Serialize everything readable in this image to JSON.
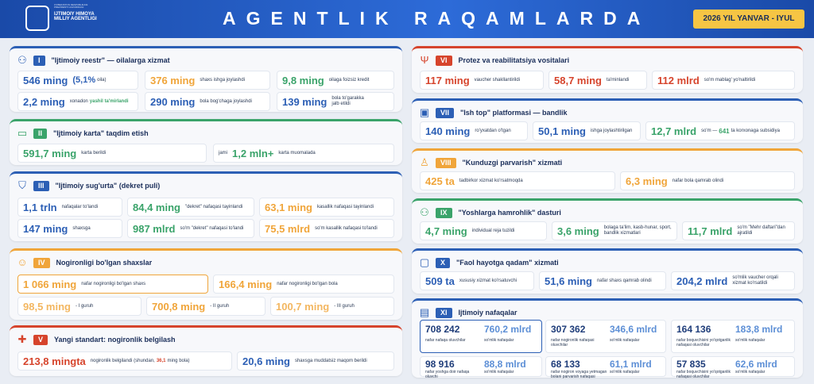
{
  "header": {
    "logo_small": "O'ZBEKISTON RESPUBLIKASI PREZIDENTI HUZURIDAGI",
    "logo_name": "IJTIMOIY HIMOYA MILLIY AGENTLIGI",
    "title": "AGENTLIK RAQAMLARDA",
    "period": "2026 YIL YANVAR - IYUL"
  },
  "sections": {
    "s1": {
      "num": "I",
      "title": "\"Ijtimoiy reestr\" — oilalarga xizmat",
      "stats": [
        {
          "value": "546 ming",
          "extra": "(5,1%",
          "label": "oila)"
        },
        {
          "value": "376 ming",
          "label": "shaxs ishga joylashdi"
        },
        {
          "value": "9,8 ming",
          "label": "oilaga foizsiz kredit"
        },
        {
          "value": "2,2 ming",
          "label": "xonadon",
          "label2": "yashil ta'mirlandi"
        },
        {
          "value": "290 ming",
          "label": "bola bog'chaga joylashdi"
        },
        {
          "value": "139 ming",
          "label": "bola to'garakka jalb etildi"
        }
      ]
    },
    "s2": {
      "num": "II",
      "title": "\"Ijtimoiy karta\" taqdim etish",
      "stats": [
        {
          "value": "591,7 ming",
          "label": "karta berildi"
        },
        {
          "pre": "jami",
          "value": "1,2 mln+",
          "label": "karta muomalada"
        }
      ]
    },
    "s3": {
      "num": "III",
      "title": "\"Ijtimoiy sug'urta\" (dekret puli)",
      "stats": [
        {
          "value": "1,1 trln",
          "label": "nafaqalar to'landi"
        },
        {
          "value": "84,4 ming",
          "label": "\"dekret\" nafaqasi tayinlandi"
        },
        {
          "value": "63,1 ming",
          "label": "kasallik nafaqasi tayinlandi"
        },
        {
          "value": "147 ming",
          "label": "shaxsga"
        },
        {
          "value": "987 mlrd",
          "label": "so'm \"dekret\" nafaqasi to'landi"
        },
        {
          "value": "75,5 mlrd",
          "label": "so'm kasallik nafaqasi to'landi"
        }
      ]
    },
    "s4": {
      "num": "IV",
      "title": "Nogironligi bo'lgan shaxslar",
      "stats": [
        {
          "value": "1 066 ming",
          "label": "nafar nogironligi bo'lgan shaxs"
        },
        {
          "value": "166,4 ming",
          "label": "nafar nogironligi bo'lgan bola"
        },
        {
          "value": "98,5 ming",
          "label": "- I guruh"
        },
        {
          "value": "700,8 ming",
          "label": "- II guruh"
        },
        {
          "value": "100,7 ming",
          "label": "- III guruh"
        }
      ]
    },
    "s5": {
      "num": "V",
      "title": "Yangi standart: nogironlik belgilash",
      "stats": [
        {
          "value": "213,8 mingta",
          "label": "nogironlik belgilandi (shundan,",
          "bold": "36,1",
          "label2": "ming bola)"
        },
        {
          "value": "20,6 ming",
          "label": "shaxsga muddatsiz maqom berildi"
        }
      ]
    },
    "s6": {
      "num": "VI",
      "title": "Protez va reabilitatsiya vositalari",
      "stats": [
        {
          "value": "117 ming",
          "label": "vaucher shakllantirildi"
        },
        {
          "value": "58,7 ming",
          "label": "ta'minlandi"
        },
        {
          "value": "112 mlrd",
          "label": "so'm mablag' yo'naltirildi"
        }
      ]
    },
    "s7": {
      "num": "VII",
      "title": "\"Ish top\" platformasi — bandlik",
      "stats": [
        {
          "value": "140 ming",
          "label": "ro'yxatdan o'tgan"
        },
        {
          "value": "50,1 ming",
          "label": "ishga joylashtirilgan"
        },
        {
          "value": "12,7 mlrd",
          "label": "so'm —",
          "bold": "641",
          "label2": "ta korxonaga subsidiya"
        }
      ]
    },
    "s8": {
      "num": "VIII",
      "title": "\"Kunduzgi parvarish\" xizmati",
      "stats": [
        {
          "value": "425 ta",
          "label": "tadbirkor xizmat ko'rsatmoqda"
        },
        {
          "value": "6,3 ming",
          "label": "nafar bola qamrab olindi"
        }
      ]
    },
    "s9": {
      "num": "IX",
      "title": "\"Yoshlarga hamrohlik\" dasturi",
      "stats": [
        {
          "value": "4,7 ming",
          "label": "individual reja tuzildi"
        },
        {
          "value": "3,6 ming",
          "label": "bolaga ta'lim, kasb-hunar, sport, bandlik xizmatlari"
        },
        {
          "value": "11,7 mlrd",
          "label": "so'm \"Mehr daftari\"dan ajratildi"
        }
      ]
    },
    "s10": {
      "num": "X",
      "title": "\"Faol hayotga qadam\" xizmati",
      "stats": [
        {
          "value": "509 ta",
          "label": "xususiy xizmat ko'rsatuvchi"
        },
        {
          "value": "51,6 ming",
          "label": "nafar shaxs qamrab olindi"
        },
        {
          "value": "204,2 mlrd",
          "label": "so'mlik vaucher orqali xizmat ko'rsatildi"
        }
      ]
    },
    "s11": {
      "num": "XI",
      "title": "Ijtimoiy nafaqalar",
      "stats": [
        {
          "a": "708 242",
          "al": "nafar nafaqa oluvchilar",
          "b": "760,2 mlrd",
          "bl": "so'mlik nafaqalar"
        },
        {
          "a": "307 362",
          "al": "nafar nogironlik nafaqasi oluvchilar",
          "b": "346,6 mlrd",
          "bl": "so'mlik nafaqalar"
        },
        {
          "a": "164 136",
          "al": "nafar boquvchisini yo'qotganlik nafaqasi oluvchilar",
          "b": "183,8 mlrd",
          "bl": "so'mlik nafaqalar"
        },
        {
          "a": "98 916",
          "al": "nafar yoshga doir nafaqa oluvchi",
          "b": "88,8 mlrd",
          "bl": "so'mlik nafaqalar"
        },
        {
          "a": "68 133",
          "al": "nafar nogiron voyaga yetmagan bolani parvarish nafaqasi",
          "b": "61,1 mlrd",
          "bl": "so'mlik nafaqalar"
        },
        {
          "a": "57 835",
          "al": "nafar boquvchisini yo'qotganlik nafaqasi oluvchilar",
          "b": "62,6 mlrd",
          "bl": "so'mlik nafaqalar"
        }
      ]
    }
  }
}
